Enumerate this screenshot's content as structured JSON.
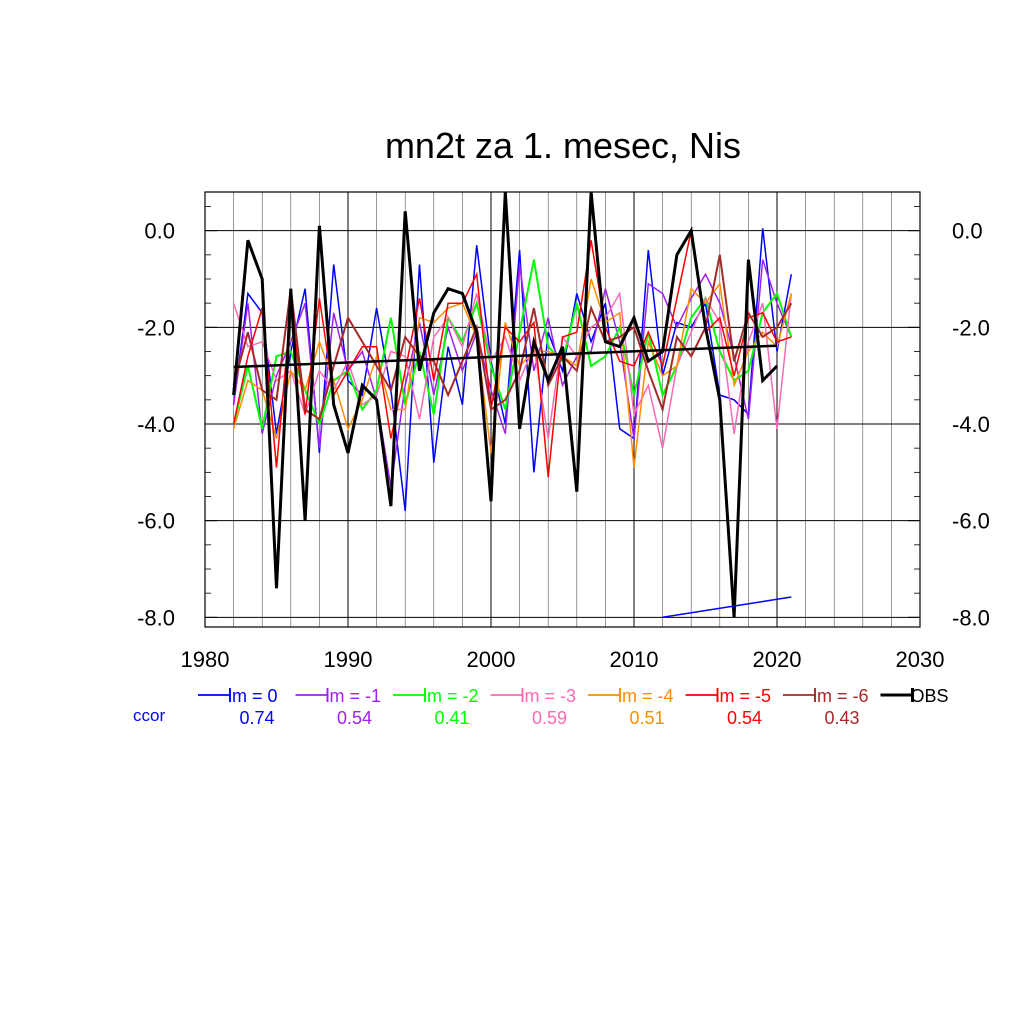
{
  "chart_data": {
    "type": "line",
    "title": "mn2t za 1. mesec, Nis",
    "xlabel": "",
    "ylabel": "",
    "xlim": [
      1980,
      2030
    ],
    "ylim": [
      -8.2,
      0.8
    ],
    "x_ticks": [
      1980,
      1990,
      2000,
      2010,
      2020,
      2030
    ],
    "x_tick_labels": [
      "1980",
      "1990",
      "2000",
      "2010",
      "2020",
      "2030"
    ],
    "y_ticks": [
      0,
      -2,
      -4,
      -6,
      -8
    ],
    "y_tick_labels": [
      "0.0",
      "-2.0",
      "-4.0",
      "-6.0",
      "-8.0"
    ],
    "x": [
      1982,
      1983,
      1984,
      1985,
      1986,
      1987,
      1988,
      1989,
      1990,
      1991,
      1992,
      1993,
      1994,
      1995,
      1996,
      1997,
      1998,
      1999,
      2000,
      2001,
      2002,
      2003,
      2004,
      2005,
      2006,
      2007,
      2008,
      2009,
      2010,
      2011,
      2012,
      2013,
      2014,
      2015,
      2016,
      2017,
      2018,
      2019,
      2020,
      2021
    ],
    "series": [
      {
        "name": "lm = 0",
        "color": "#0000ff",
        "width": 1.5,
        "values": [
          -3.6,
          -1.3,
          -1.7,
          -4.2,
          -2.5,
          -1.2,
          -4.6,
          -0.7,
          -3.1,
          -3.4,
          -1.6,
          -3.3,
          -5.8,
          -0.7,
          -4.8,
          -2.4,
          -3.6,
          -0.3,
          -2.7,
          -4.0,
          -0.4,
          -5.0,
          -2.1,
          -2.9,
          -1.3,
          -2.3,
          -1.5,
          -4.1,
          -4.3,
          -0.4,
          -3.0,
          -1.9,
          -2.0,
          -1.5,
          -3.4,
          -3.5,
          -3.8,
          0.05,
          -2.5,
          -0.9
        ]
      },
      {
        "name": "lm = -1",
        "color": "#a020f0",
        "width": 1.5,
        "values": [
          -3.6,
          -1.5,
          -4.2,
          -3.0,
          -2.3,
          -1.5,
          -4.5,
          -1.7,
          -2.9,
          -2.5,
          -3.5,
          -5.3,
          -3.2,
          -1.9,
          -3.4,
          -2.0,
          -2.9,
          -2.1,
          -3.3,
          -4.2,
          -0.7,
          -2.9,
          -1.8,
          -3.2,
          -2.6,
          -2.5,
          -1.2,
          -2.3,
          -4.3,
          -1.1,
          -1.3,
          -2.0,
          -1.4,
          -0.9,
          -1.5,
          -2.6,
          -3.9,
          -0.6,
          -1.5,
          -2.2
        ]
      },
      {
        "name": "lm = -2",
        "color": "#00ff00",
        "width": 2,
        "values": [
          -4.0,
          -2.8,
          -4.1,
          -2.6,
          -2.5,
          -3.3,
          -4.0,
          -3.1,
          -2.9,
          -3.7,
          -3.3,
          -1.8,
          -3.6,
          -2.5,
          -3.8,
          -1.8,
          -2.3,
          -1.5,
          -2.8,
          -3.7,
          -2.1,
          -0.6,
          -2.4,
          -2.7,
          -1.5,
          -2.8,
          -2.6,
          -2.0,
          -3.4,
          -2.1,
          -3.4,
          -2.8,
          -1.8,
          -1.4,
          -2.5,
          -3.1,
          -2.9,
          -1.7,
          -1.3,
          -2.2
        ]
      },
      {
        "name": "lm = -3",
        "color": "#ff69b4",
        "width": 1.5,
        "values": [
          -1.5,
          -2.4,
          -2.3,
          -3.1,
          -2.9,
          -3.8,
          -2.9,
          -3.3,
          -2.7,
          -3.6,
          -3.4,
          -2.5,
          -2.6,
          -3.9,
          -2.2,
          -1.8,
          -2.4,
          -1.3,
          -2.7,
          -2.2,
          -3.1,
          -2.4,
          -4.3,
          -2.2,
          -2.6,
          -2.0,
          -1.8,
          -1.3,
          -3.8,
          -3.2,
          -4.5,
          -2.8,
          -2.1,
          -1.4,
          -1.9,
          -4.2,
          -2.3,
          -1.5,
          -4.1,
          -1.3
        ]
      },
      {
        "name": "lm = -4",
        "color": "#ff8c00",
        "width": 1.5,
        "values": [
          -4.1,
          -3.1,
          -3.3,
          -4.3,
          -2.9,
          -3.3,
          -2.3,
          -3.1,
          -4.1,
          -3.5,
          -2.6,
          -3.7,
          -3.7,
          -1.8,
          -1.9,
          -1.6,
          -1.5,
          -2.2,
          -4.6,
          -1.9,
          -2.8,
          -2.5,
          -2.5,
          -2.6,
          -2.8,
          -1.0,
          -1.9,
          -1.7,
          -4.9,
          -2.3,
          -3.0,
          -2.8,
          -1.2,
          -1.5,
          -1.1,
          -3.2,
          -2.5,
          -2.1,
          -2.4,
          -1.3
        ]
      },
      {
        "name": "lm = -5",
        "color": "#ff0000",
        "width": 1.5,
        "values": [
          -4.0,
          -2.6,
          -1.6,
          -4.9,
          -1.6,
          -3.8,
          -1.4,
          -3.4,
          -2.9,
          -2.4,
          -2.4,
          -4.3,
          -2.9,
          -1.4,
          -3.1,
          -1.5,
          -1.5,
          -0.9,
          -3.7,
          -2.0,
          -2.3,
          -1.9,
          -5.1,
          -2.2,
          -2.1,
          -0.2,
          -2.0,
          -2.7,
          -2.8,
          -2.1,
          -2.8,
          -1.4,
          0.0,
          -2.1,
          -1.8,
          -3.0,
          -1.8,
          -1.7,
          -2.3,
          -2.2
        ]
      },
      {
        "name": "lm = -6",
        "color": "#a52a2a",
        "width": 2,
        "values": [
          -3.2,
          -2.1,
          -3.3,
          -3.5,
          -1.2,
          -3.7,
          -3.9,
          -2.8,
          -1.8,
          -2.3,
          -2.8,
          -3.3,
          -2.2,
          -2.6,
          -2.7,
          -3.4,
          -2.7,
          -2.0,
          -3.7,
          -3.5,
          -2.9,
          -1.6,
          -3.2,
          -2.6,
          -2.9,
          -1.6,
          -2.3,
          -2.2,
          -2.0,
          -2.9,
          -3.7,
          -2.2,
          -2.6,
          -2.0,
          -0.5,
          -2.7,
          -1.7,
          -2.2,
          -2.0,
          -1.5
        ]
      },
      {
        "name": "OBS",
        "color": "#000000",
        "width": 3,
        "values": [
          -3.4,
          -0.2,
          -1.0,
          -7.4,
          -1.2,
          -6.0,
          0.1,
          -3.6,
          -4.6,
          -3.2,
          -3.5,
          -5.7,
          0.4,
          -2.9,
          -1.7,
          -1.2,
          -1.3,
          -2.1,
          -5.6,
          0.8,
          -4.1,
          -2.3,
          -3.1,
          -2.4,
          -5.4,
          0.8,
          -2.3,
          -2.4,
          -1.8,
          -2.7,
          -2.5,
          -0.5,
          0.0,
          -2.0,
          -3.5,
          -8.0,
          -0.6,
          -3.1,
          -2.8,
          null
        ]
      },
      {
        "name": "OBS trend",
        "color": "#000000",
        "width": 2.5,
        "line": {
          "x": [
            1982,
            2020
          ],
          "y": [
            -2.82,
            -2.38
          ]
        }
      },
      {
        "name": "lm = 0 trend",
        "color": "#0000ff",
        "width": 1.5,
        "line": {
          "x": [
            2012,
            2021
          ],
          "y": [
            -8.0,
            -7.58
          ]
        }
      }
    ],
    "legend": {
      "placement": "bottom",
      "ccor_label": "ccor",
      "ccor_color": "#0000ff",
      "items": [
        {
          "label": "lm = 0",
          "color": "#0000ff",
          "ccor": "0.74"
        },
        {
          "label": "lm = -1",
          "color": "#a020f0",
          "ccor": "0.54"
        },
        {
          "label": "lm = -2",
          "color": "#00ff00",
          "ccor": "0.41"
        },
        {
          "label": "lm = -3",
          "color": "#ff69b4",
          "ccor": "0.59"
        },
        {
          "label": "lm = -4",
          "color": "#ff8c00",
          "ccor": "0.51"
        },
        {
          "label": "lm = -5",
          "color": "#ff0000",
          "ccor": "0.54"
        },
        {
          "label": "lm = -6",
          "color": "#a52a2a",
          "ccor": "0.43"
        },
        {
          "label": "OBS",
          "color": "#000000",
          "ccor": ""
        }
      ]
    },
    "grid": true
  }
}
